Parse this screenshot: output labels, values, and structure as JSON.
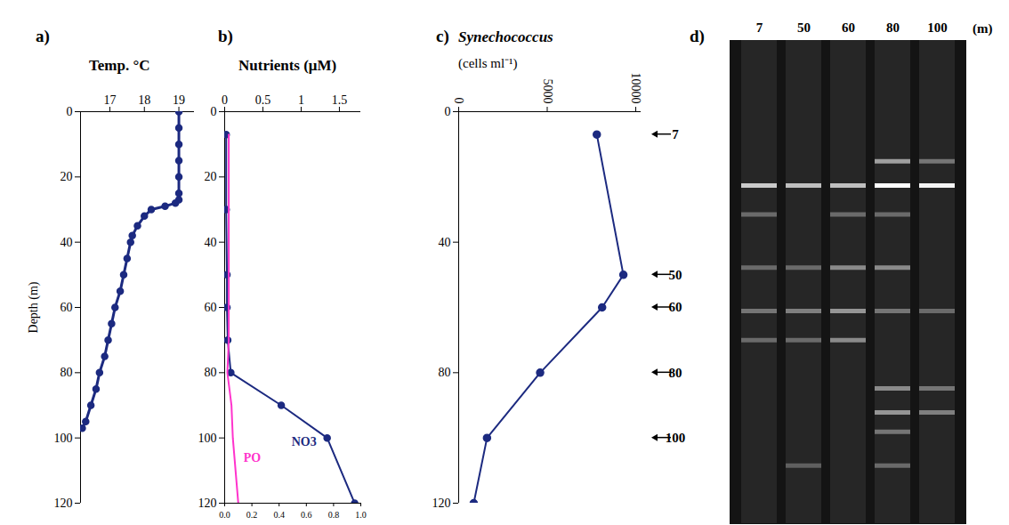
{
  "chart_data": [
    {
      "type": "line",
      "panel_label": "a)",
      "title": "Temp. °C",
      "y_label": "Depth (m)",
      "xlim": [
        16.15,
        19.45
      ],
      "xticks": [
        17,
        18,
        19
      ],
      "ylim": [
        0,
        120
      ],
      "yticks": [
        0,
        20,
        40,
        60,
        80,
        100,
        120
      ],
      "series": [
        {
          "color": "#1c2a80",
          "marker": "circle",
          "x": [
            19.0,
            19.0,
            19.0,
            19.0,
            19.0,
            19.0,
            19.0,
            18.9,
            18.6,
            18.2,
            18.0,
            17.8,
            17.65,
            17.6,
            17.5,
            17.4,
            17.3,
            17.15,
            17.05,
            16.95,
            16.85,
            16.7,
            16.6,
            16.45,
            16.3,
            16.2
          ],
          "y": [
            0,
            5,
            10,
            15,
            20,
            25,
            27,
            28,
            29,
            30,
            32,
            35,
            38,
            40,
            45,
            50,
            55,
            60,
            65,
            70,
            75,
            80,
            85,
            90,
            95,
            97
          ]
        }
      ]
    },
    {
      "type": "line",
      "panel_label": "b)",
      "title": "Nutrients (μM)",
      "xlim": [
        0,
        1.78
      ],
      "xticks": [
        0,
        0.5,
        1,
        1.5
      ],
      "x2lim": [
        0,
        1
      ],
      "x2ticks": [
        {
          "value": 0,
          "label": "0.0"
        },
        0.2,
        0.4,
        0.6,
        0.8,
        {
          "value": 1,
          "label": "1.0"
        }
      ],
      "ylim": [
        0,
        120
      ],
      "yticks": [
        0,
        20,
        40,
        60,
        80,
        100,
        120
      ],
      "series": [
        {
          "name": "NO3",
          "color": "#1c2a80",
          "marker": "circle",
          "x": [
            0.02,
            0.02,
            0.03,
            0.03,
            0.04,
            0.08,
            0.74,
            1.34,
            1.7
          ],
          "y": [
            7,
            30,
            50,
            60,
            70,
            80,
            90,
            100,
            120
          ]
        },
        {
          "name": "PO",
          "color": "#ff33cc",
          "marker": "none",
          "axis": "x2",
          "x": [
            0.03,
            0.03,
            0.03,
            0.03,
            0.03,
            0.02,
            0.05,
            0.06,
            0.1
          ],
          "y": [
            7,
            30,
            50,
            60,
            70,
            80,
            90,
            100,
            120
          ]
        }
      ]
    },
    {
      "type": "line",
      "panel_label": "c)",
      "title": "Synechococcus",
      "subtitle": "(cells ml⁻¹)",
      "xlim": [
        0,
        10300
      ],
      "xticks": [
        0,
        5000,
        10000
      ],
      "ylim": [
        0,
        120
      ],
      "yticks": [
        0,
        40,
        80,
        120
      ],
      "annotations": [
        7,
        50,
        60,
        80,
        100
      ],
      "series": [
        {
          "color": "#1c2a80",
          "marker": "circle",
          "x": [
            7800,
            9300,
            8100,
            4600,
            1600,
            850
          ],
          "y": [
            7,
            50,
            60,
            80,
            100,
            120
          ]
        }
      ]
    },
    {
      "type": "gel",
      "panel_label": "d)",
      "categories": [
        "7",
        "50",
        "60",
        "80",
        "100"
      ],
      "x_label": "(m)",
      "ylim": [
        0,
        1
      ],
      "tick_labels": "x",
      "bands": [
        {
          "lane": 0,
          "position": 0.3,
          "intensity": 0.75
        },
        {
          "lane": 1,
          "position": 0.3,
          "intensity": 0.7
        },
        {
          "lane": 2,
          "position": 0.3,
          "intensity": 0.7
        },
        {
          "lane": 3,
          "position": 0.3,
          "intensity": 1.0
        },
        {
          "lane": 4,
          "position": 0.3,
          "intensity": 0.95
        },
        {
          "lane": 3,
          "position": 0.25,
          "intensity": 0.55
        },
        {
          "lane": 4,
          "position": 0.25,
          "intensity": 0.35
        },
        {
          "lane": 0,
          "position": 0.36,
          "intensity": 0.3
        },
        {
          "lane": 2,
          "position": 0.36,
          "intensity": 0.3
        },
        {
          "lane": 3,
          "position": 0.36,
          "intensity": 0.3
        },
        {
          "lane": 0,
          "position": 0.47,
          "intensity": 0.3
        },
        {
          "lane": 1,
          "position": 0.47,
          "intensity": 0.3
        },
        {
          "lane": 2,
          "position": 0.47,
          "intensity": 0.45
        },
        {
          "lane": 3,
          "position": 0.47,
          "intensity": 0.45
        },
        {
          "lane": 0,
          "position": 0.56,
          "intensity": 0.35
        },
        {
          "lane": 1,
          "position": 0.56,
          "intensity": 0.4
        },
        {
          "lane": 2,
          "position": 0.56,
          "intensity": 0.5
        },
        {
          "lane": 3,
          "position": 0.56,
          "intensity": 0.35
        },
        {
          "lane": 4,
          "position": 0.56,
          "intensity": 0.3
        },
        {
          "lane": 0,
          "position": 0.62,
          "intensity": 0.3
        },
        {
          "lane": 1,
          "position": 0.62,
          "intensity": 0.3
        },
        {
          "lane": 2,
          "position": 0.62,
          "intensity": 0.45
        },
        {
          "lane": 3,
          "position": 0.72,
          "intensity": 0.45
        },
        {
          "lane": 4,
          "position": 0.72,
          "intensity": 0.35
        },
        {
          "lane": 3,
          "position": 0.77,
          "intensity": 0.5
        },
        {
          "lane": 4,
          "position": 0.77,
          "intensity": 0.4
        },
        {
          "lane": 3,
          "position": 0.81,
          "intensity": 0.35
        },
        {
          "lane": 1,
          "position": 0.88,
          "intensity": 0.25
        },
        {
          "lane": 3,
          "position": 0.88,
          "intensity": 0.3
        }
      ]
    }
  ]
}
